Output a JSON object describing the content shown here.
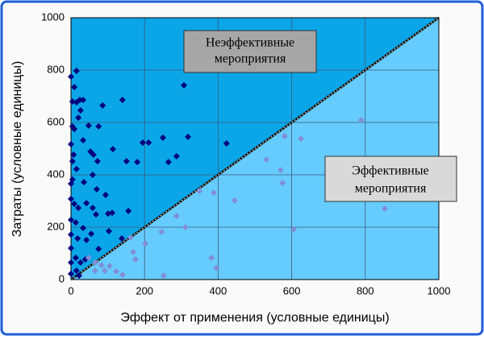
{
  "chart_data": {
    "type": "scatter",
    "xlabel": "Эффект от применения (условные единицы)",
    "ylabel": "Затраты (условные единицы)",
    "annotations": [
      {
        "lines": [
          "Неэффективные",
          "мероприятия"
        ]
      },
      {
        "lines": [
          "Эффективные",
          "мероприятия"
        ]
      }
    ],
    "region_colors": {
      "above": "#0aa6e8",
      "below": "#66ccff"
    },
    "xlim": [
      0,
      1000
    ],
    "ylim": [
      0,
      1000
    ],
    "xticks": [
      0,
      200,
      400,
      600,
      800,
      1000
    ],
    "yticks": [
      0,
      200,
      400,
      600,
      800,
      1000
    ],
    "grid": true,
    "series": [
      {
        "color": "#000080",
        "x": [
          0,
          15,
          9,
          4,
          15,
          24,
          33,
          26,
          20,
          4,
          9,
          86,
          48,
          75,
          140,
          307,
          0,
          7,
          4,
          33,
          53,
          61,
          72,
          114,
          151,
          180,
          195,
          211,
          250,
          265,
          287,
          318,
          423,
          0,
          4,
          15,
          35,
          59,
          70,
          94,
          0,
          9,
          20,
          42,
          59,
          68,
          101,
          112,
          156,
          0,
          13,
          33,
          55,
          103,
          0,
          18,
          42,
          75,
          138,
          0,
          13,
          26,
          39,
          0,
          15,
          0,
          22
        ],
        "values": [
          775,
          797,
          735,
          680,
          677,
          686,
          686,
          646,
          618,
          585,
          575,
          665,
          588,
          585,
          686,
          742,
          517,
          477,
          452,
          532,
          489,
          477,
          452,
          498,
          452,
          449,
          523,
          523,
          542,
          449,
          471,
          545,
          520,
          366,
          382,
          422,
          372,
          400,
          345,
          323,
          308,
          289,
          274,
          292,
          274,
          249,
          252,
          255,
          262,
          228,
          218,
          197,
          175,
          185,
          172,
          157,
          151,
          117,
          157,
          120,
          83,
          65,
          77,
          65,
          34,
          22,
          15
        ]
      },
      {
        "color": "#7f8fd6",
        "x": [
          789,
          581,
          625,
          531,
          570,
          575,
          445,
          349,
          388,
          853,
          605,
          287,
          311,
          246,
          162,
          202,
          169,
          175,
          382,
          395,
          252,
          66,
          83,
          66,
          92,
          105,
          123,
          140,
          48
        ],
        "values": [
          609,
          548,
          538,
          458,
          418,
          369,
          302,
          338,
          332,
          271,
          191,
          243,
          200,
          182,
          160,
          138,
          105,
          77,
          83,
          43,
          15,
          65,
          55,
          34,
          34,
          52,
          31,
          18,
          83
        ]
      }
    ]
  }
}
